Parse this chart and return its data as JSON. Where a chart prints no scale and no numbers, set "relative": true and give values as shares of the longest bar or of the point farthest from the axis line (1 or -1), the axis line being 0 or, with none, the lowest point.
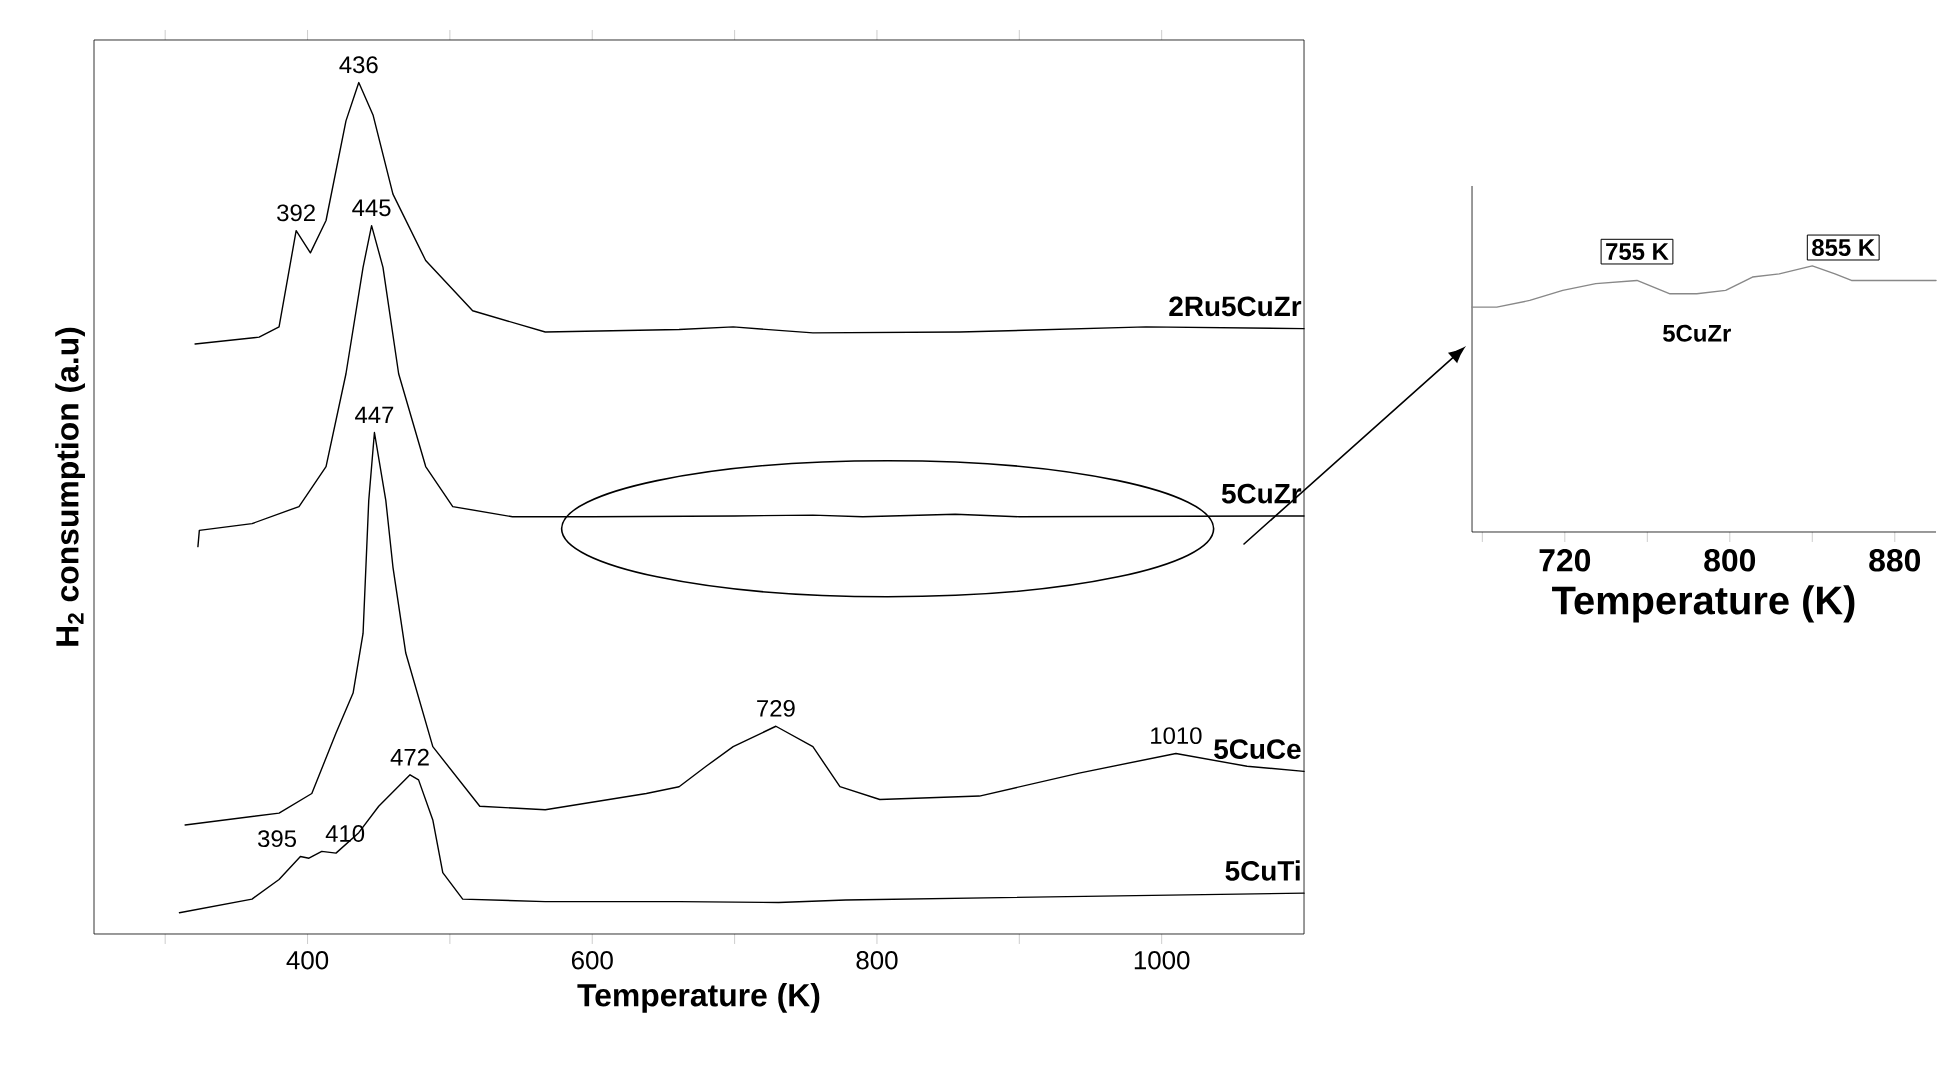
{
  "chart_data": [
    {
      "type": "line",
      "relative": true,
      "xlabel": "Temperature (K)",
      "ylabel": "H$_{2}$ consumption (a.u)",
      "xlim": [
        250,
        1100
      ],
      "xticks": [
        {
          "value": 300,
          "label": null
        },
        400,
        {
          "value": 500,
          "label": null
        },
        600,
        {
          "value": 700,
          "label": null
        },
        800,
        {
          "value": 900,
          "label": null
        },
        1000
      ],
      "tick_labels": "x",
      "series": [
        {
          "name": "2Ru5CuZr",
          "color": "#000000",
          "x": [
            321,
            366,
            380,
            392,
            402,
            413,
            427,
            436,
            446,
            460,
            483,
            516,
            567,
            661,
            699,
            755,
            858,
            989,
            1100
          ],
          "values": [
            0.693,
            0.701,
            0.713,
            0.826,
            0.8,
            0.838,
            0.955,
            1.0,
            0.962,
            0.869,
            0.791,
            0.732,
            0.707,
            0.71,
            0.713,
            0.706,
            0.707,
            0.713,
            0.711
          ]
        },
        {
          "name": "5CuZr",
          "color": "#000000",
          "x": [
            323,
            324,
            361,
            394,
            413,
            427,
            439,
            445,
            453,
            464,
            483,
            502,
            544,
            600,
            700,
            755,
            790,
            855,
            900,
            1100
          ],
          "values": [
            0.455,
            0.474,
            0.482,
            0.502,
            0.549,
            0.658,
            0.783,
            0.832,
            0.783,
            0.658,
            0.549,
            0.502,
            0.49,
            0.49,
            0.491,
            0.492,
            0.49,
            0.493,
            0.49,
            0.491
          ]
        },
        {
          "name": "5CuCe",
          "color": "#000000",
          "x": [
            314,
            380,
            403,
            420,
            432,
            439,
            443,
            447,
            455,
            460,
            469,
            488,
            521,
            567,
            638,
            661,
            680,
            699,
            729,
            755,
            774,
            802,
            872,
            942,
            1010,
            1060,
            1100
          ],
          "values": [
            0.128,
            0.142,
            0.165,
            0.236,
            0.283,
            0.353,
            0.509,
            0.589,
            0.509,
            0.431,
            0.33,
            0.22,
            0.15,
            0.146,
            0.165,
            0.173,
            0.197,
            0.22,
            0.244,
            0.22,
            0.173,
            0.158,
            0.162,
            0.189,
            0.212,
            0.197,
            0.191
          ]
        },
        {
          "name": "5CuTi",
          "color": "#000000",
          "x": [
            310,
            361,
            380,
            395,
            401,
            410,
            420,
            436,
            450,
            472,
            478,
            488,
            495,
            509,
            567,
            661,
            731,
            778,
            1100
          ],
          "values": [
            0.025,
            0.041,
            0.064,
            0.091,
            0.089,
            0.097,
            0.095,
            0.119,
            0.15,
            0.187,
            0.181,
            0.134,
            0.072,
            0.041,
            0.038,
            0.038,
            0.037,
            0.04,
            0.048
          ]
        }
      ],
      "annotations": [
        {
          "text": "436",
          "x": 436,
          "y": 1.0
        },
        {
          "text": "392",
          "x": 392,
          "y": 0.826
        },
        {
          "text": "445",
          "x": 445,
          "y": 0.832
        },
        {
          "text": "447",
          "x": 447,
          "y": 0.589
        },
        {
          "text": "729",
          "x": 729,
          "y": 0.244
        },
        {
          "text": "1010",
          "x": 1010,
          "y": 0.212
        },
        {
          "text": "472",
          "x": 472,
          "y": 0.187
        },
        {
          "text": "395",
          "x": 395,
          "y": 0.091
        },
        {
          "text": "410",
          "x": 410,
          "y": 0.097
        }
      ]
    },
    {
      "type": "line",
      "relative": true,
      "xlabel": "Temperature (K)",
      "xlim": [
        675,
        900
      ],
      "xticks": [
        {
          "value": 680,
          "label": null
        },
        720,
        {
          "value": 760,
          "label": null
        },
        800,
        {
          "value": 840,
          "label": null
        },
        880
      ],
      "tick_labels": "x",
      "series": [
        {
          "name": "5CuZr",
          "color": "#888888",
          "x": [
            675,
            687,
            703,
            719,
            735,
            755,
            771,
            784,
            798,
            811,
            824,
            840,
            851,
            859,
            900
          ],
          "values": [
            0.845,
            0.845,
            0.87,
            0.908,
            0.933,
            0.945,
            0.895,
            0.895,
            0.908,
            0.958,
            0.97,
            1.0,
            0.97,
            0.945,
            0.945
          ]
        }
      ],
      "annotations": [
        {
          "text": "755 K",
          "x": 755,
          "y": 0.945
        },
        {
          "text": "855 K",
          "x": 855,
          "y": 0.96
        }
      ]
    }
  ]
}
